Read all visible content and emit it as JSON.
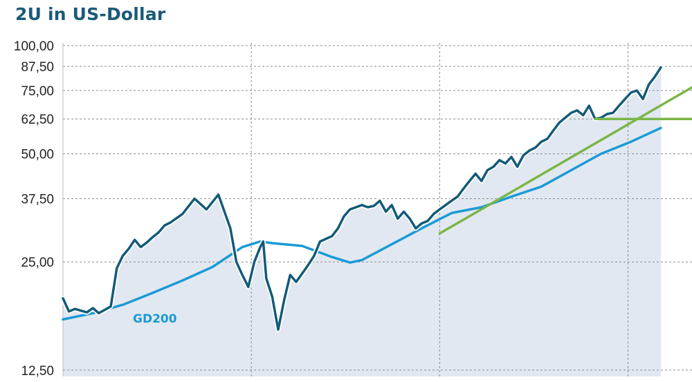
{
  "chart_data": {
    "type": "line",
    "title": "2U in US-Dollar",
    "y_scale": "log",
    "ylim": [
      12,
      105
    ],
    "y_ticks": [
      100,
      87.5,
      75,
      62.5,
      50,
      37.5,
      25,
      12.5
    ],
    "y_tick_labels": [
      "100,00",
      "87,50",
      "75,00",
      "62,50",
      "50,00",
      "37,50",
      "25,00",
      "12,50"
    ],
    "x_range": [
      0,
      100
    ],
    "x_gridlines": [
      31.5,
      63,
      94.5
    ],
    "grid": true,
    "colors": {
      "price": "#135a78",
      "gd200": "#1a9ad6",
      "trend": "#7ab648",
      "fill": "#e2e8f1",
      "grid": "#8a8a8a"
    },
    "series": [
      {
        "name": "",
        "x": [
          0,
          1,
          2,
          3,
          4,
          5,
          6,
          8,
          9,
          10,
          11,
          12,
          13,
          14,
          15,
          16,
          17,
          18,
          20,
          22,
          24,
          26,
          28,
          29,
          30,
          31,
          32,
          33,
          33.5,
          34,
          35,
          36,
          37,
          38,
          39,
          40,
          41,
          42,
          43,
          44,
          45,
          46,
          47,
          48,
          49,
          50,
          51,
          52,
          53,
          54,
          55,
          56,
          57,
          58,
          59,
          60,
          61,
          62,
          63,
          64,
          65,
          66,
          67,
          68,
          69,
          70,
          71,
          72,
          73,
          74,
          75,
          76,
          77,
          78,
          79,
          80,
          81,
          82,
          83,
          84,
          85,
          86,
          87,
          88,
          89,
          90,
          91,
          92,
          93,
          94,
          95,
          96,
          97,
          98,
          99,
          100
        ],
        "y": [
          19.8,
          18.2,
          18.5,
          18.3,
          18.1,
          18.6,
          18.0,
          18.8,
          24.0,
          26.0,
          27.2,
          28.8,
          27.5,
          28.3,
          29.3,
          30.2,
          31.6,
          32.2,
          34.0,
          37.5,
          35.0,
          38.5,
          31.0,
          25.0,
          23.0,
          21.3,
          25.0,
          27.5,
          28.5,
          22.5,
          20.0,
          16.2,
          19.6,
          23.0,
          22.0,
          23.2,
          24.5,
          26.0,
          28.5,
          29.0,
          29.5,
          31.0,
          33.5,
          35.0,
          35.5,
          36.0,
          35.5,
          35.8,
          37.0,
          34.5,
          36.0,
          33.0,
          34.5,
          33.0,
          31.0,
          32.0,
          32.5,
          34.0,
          35.0,
          36.0,
          37.0,
          38.0,
          40.0,
          42.0,
          44.0,
          42.0,
          45.0,
          46.0,
          48.0,
          47.0,
          49.0,
          46.0,
          49.5,
          51.0,
          52.0,
          54.0,
          55.0,
          58.0,
          61.0,
          63.0,
          65.0,
          66.0,
          64.0,
          68.0,
          62.5,
          63.0,
          64.5,
          65.0,
          68.0,
          71.0,
          74.0,
          75.0,
          71.0,
          78.0,
          82.0,
          87.0
        ]
      },
      {
        "name": "GD200",
        "x": [
          0,
          5,
          10,
          15,
          20,
          25,
          30,
          33,
          35,
          40,
          45,
          48,
          50,
          55,
          60,
          65,
          70,
          75,
          80,
          85,
          90,
          95,
          100
        ],
        "y": [
          17.3,
          18.0,
          19.0,
          20.5,
          22.2,
          24.2,
          27.5,
          28.5,
          28.2,
          27.7,
          25.8,
          24.9,
          25.3,
          28.0,
          31.0,
          34.2,
          35.5,
          38.0,
          40.5,
          45.0,
          50.0,
          54.0,
          59.0
        ]
      }
    ],
    "trendlines": [
      {
        "x": [
          63,
          105.5
        ],
        "y": [
          30.0,
          77.0
        ]
      },
      {
        "x": [
          89,
          105.5
        ],
        "y": [
          62.5,
          62.5
        ]
      }
    ]
  }
}
